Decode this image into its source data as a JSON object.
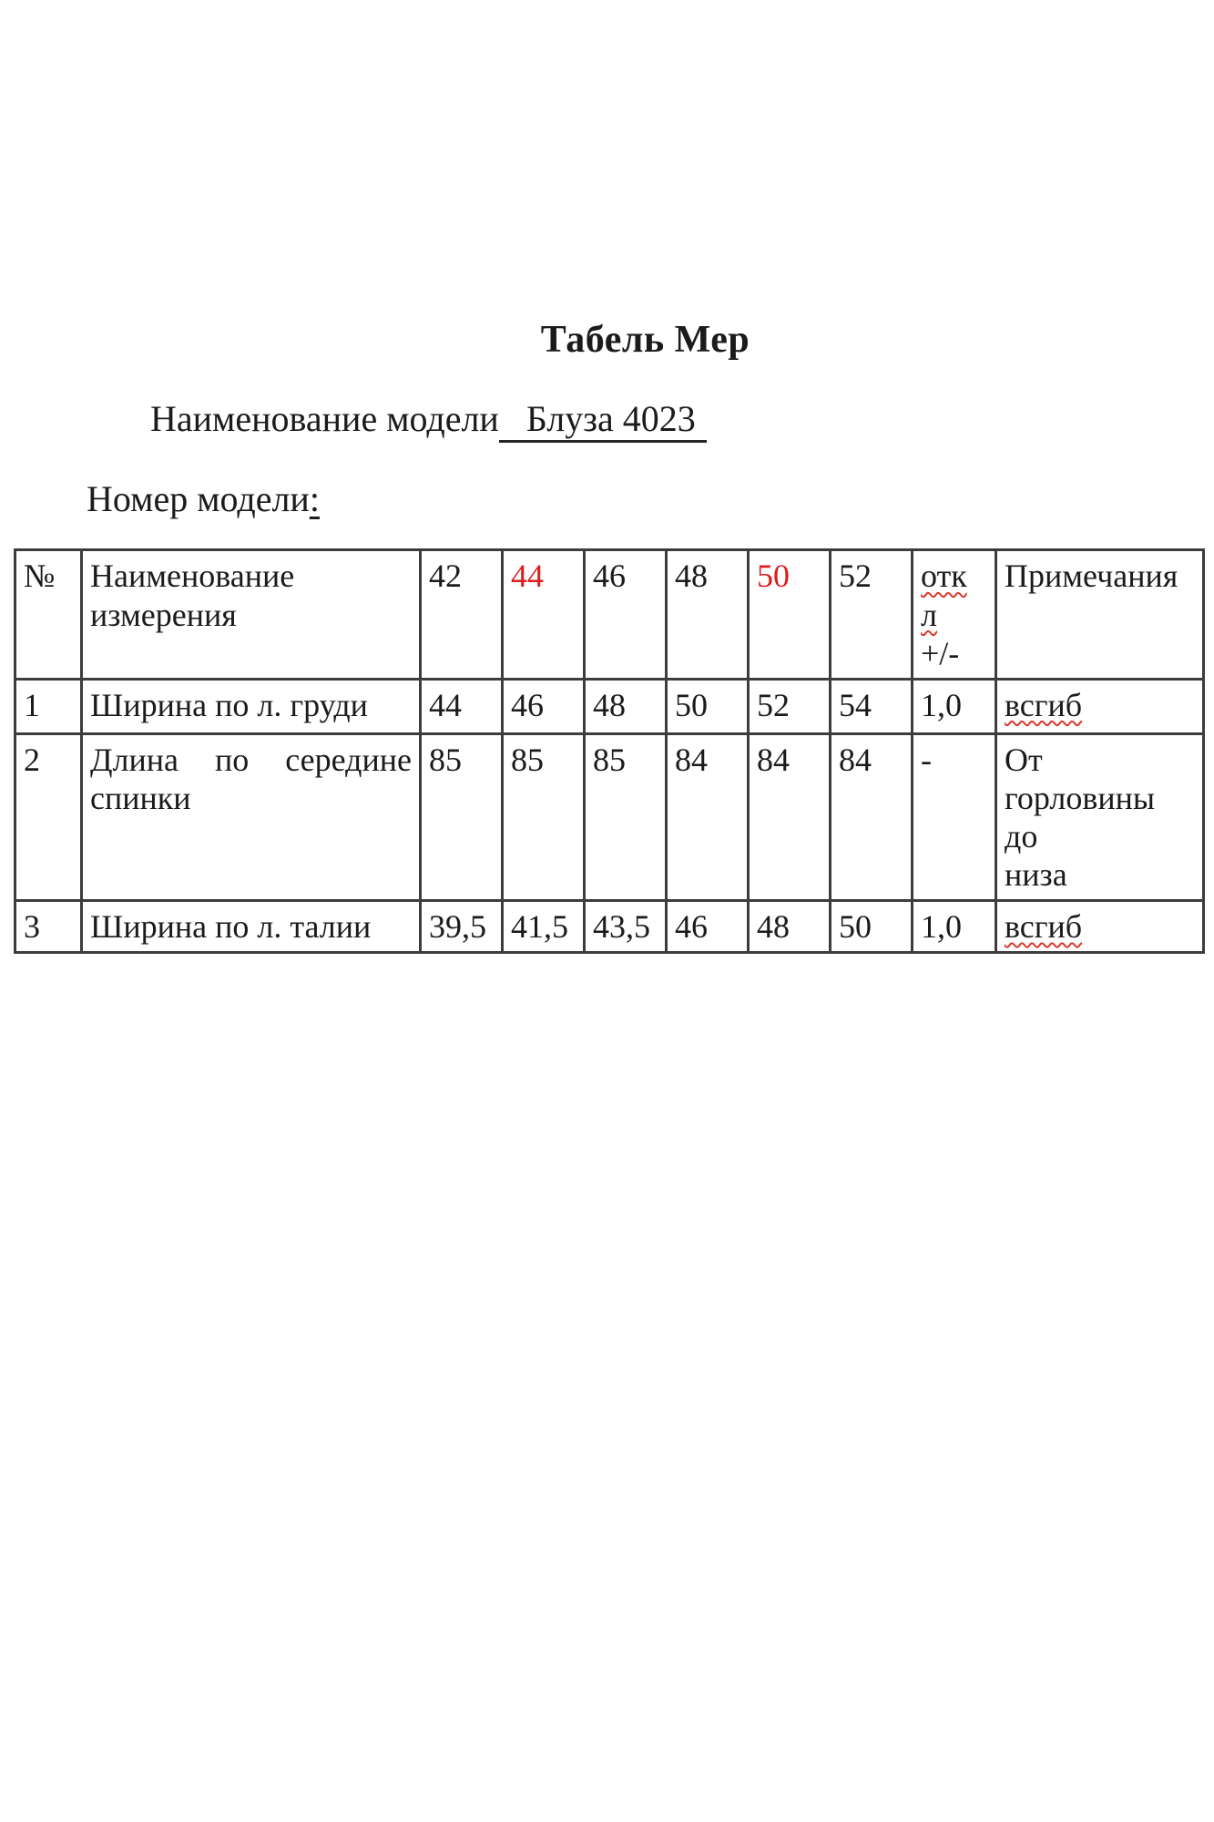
{
  "document": {
    "title": "Табель Мер",
    "model_name": {
      "label": "Наименование модели",
      "value": "Блуза 4023"
    },
    "model_number": {
      "label": "Номер модели",
      "colon": ":"
    }
  },
  "table": {
    "header": {
      "num": "№",
      "name": "Наименование измерения",
      "sizes": [
        {
          "label": "42",
          "red": false
        },
        {
          "label": "44",
          "red": true
        },
        {
          "label": "46",
          "red": false
        },
        {
          "label": "48",
          "red": false
        },
        {
          "label": "50",
          "red": true
        },
        {
          "label": "52",
          "red": false
        }
      ],
      "deviation_lines": [
        {
          "text": "отк",
          "wavy": true
        },
        {
          "text": "л",
          "wavy": true
        },
        {
          "text": "+/-",
          "wavy": false
        }
      ],
      "notes": "Примечания"
    },
    "rows": [
      {
        "num": "1",
        "name_lines": [
          "Ширина по л. груди"
        ],
        "justify": false,
        "values": [
          "44",
          "46",
          "48",
          "50",
          "52",
          "54"
        ],
        "deviation": "1,0",
        "note_lines": [
          {
            "text": "всгиб",
            "wavy": true
          }
        ]
      },
      {
        "num": "2",
        "name_lines": [
          "Длина по середине",
          "спинки"
        ],
        "justify": true,
        "values": [
          "85",
          "85",
          "85",
          "84",
          "84",
          "84"
        ],
        "deviation": "-",
        "note_lines": [
          {
            "text": "От",
            "wavy": false
          },
          {
            "text": "горловины до",
            "wavy": false
          },
          {
            "text": "низа",
            "wavy": false
          }
        ]
      },
      {
        "num": "3",
        "name_lines": [
          "Ширина по л. талии"
        ],
        "justify": false,
        "values": [
          "39,5",
          "41,5",
          "43,5",
          "46",
          "48",
          "50"
        ],
        "deviation": "1,0",
        "note_lines": [
          {
            "text": "всгиб",
            "wavy": true
          }
        ]
      }
    ]
  },
  "colors": {
    "accent_red": "#de1c1c",
    "wavy_underline": "#d93a2c",
    "table_border": "#3d3d3d",
    "text": "#1b1b1b"
  }
}
